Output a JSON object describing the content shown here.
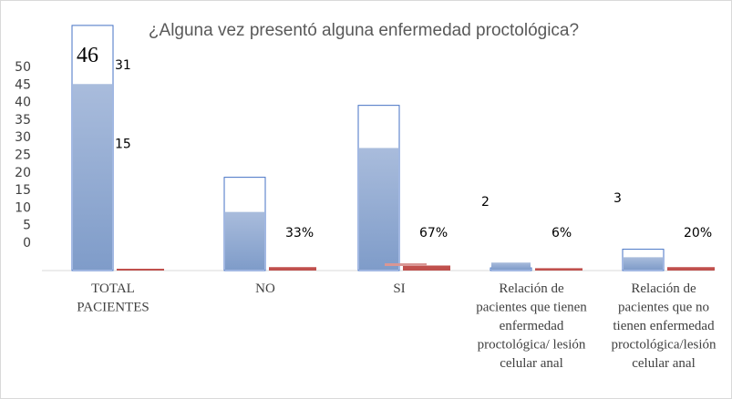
{
  "chart_data": {
    "type": "bar",
    "title": "¿Alguna vez presentó alguna enfermedad proctológica?",
    "xlabel": "",
    "ylabel": "",
    "y_ticks": [
      "50",
      "45",
      "40",
      "35",
      "30",
      "25",
      "20",
      "15",
      "10",
      "5",
      "0"
    ],
    "ylim": [
      0,
      55
    ],
    "categories": [
      [
        "TOTAL",
        "PACIENTES"
      ],
      [
        "NO"
      ],
      [
        "SI"
      ],
      [
        "Relación de",
        "pacientes que tienen",
        "enfermedad",
        "proctológica/ lesión",
        "celular anal"
      ],
      [
        "Relación de",
        "pacientes que no",
        "tienen enfermedad",
        "proctológica/lesión",
        "celular anal"
      ]
    ],
    "outline_values": [
      46,
      17.5,
      31,
      0.5,
      4
    ],
    "fill_values": [
      35,
      11,
      23,
      1.5,
      2.5
    ],
    "secondary_values": [
      0,
      0.3,
      0.6,
      0.1,
      0.3
    ],
    "data_labels": [
      {
        "text": "46",
        "cat": 0,
        "pos": "top",
        "style": "big"
      },
      {
        "text": "31",
        "cat": 0,
        "pos": "right-top"
      },
      {
        "text": "15",
        "cat": 0,
        "pos": "right-mid"
      },
      {
        "text": "33%",
        "cat": 1,
        "pos": "secondary"
      },
      {
        "text": "67%",
        "cat": 2,
        "pos": "secondary"
      },
      {
        "text": "2",
        "cat": 3,
        "pos": "above"
      },
      {
        "text": "6%",
        "cat": 3,
        "pos": "secondary"
      },
      {
        "text": "3",
        "cat": 4,
        "pos": "above"
      },
      {
        "text": "20%",
        "cat": 4,
        "pos": "secondary"
      }
    ],
    "grid": false,
    "colors": {
      "outline": "#4472c4",
      "fill_top": "#a9bcdc",
      "fill_bottom": "#7f9cc9",
      "secondary": "#c0504d",
      "secondary_light": "#d99694",
      "axis": "#d9d9d9"
    }
  }
}
